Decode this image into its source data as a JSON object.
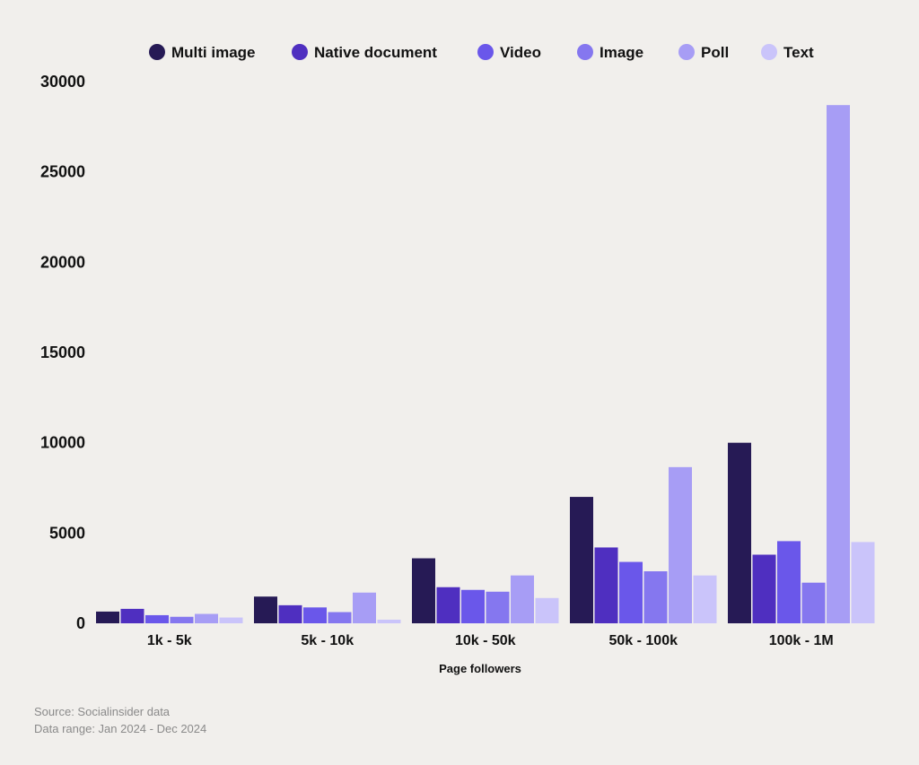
{
  "chart_data": {
    "type": "bar",
    "xlabel": "Page followers",
    "ylabel": "",
    "ylim": [
      0,
      30000
    ],
    "yticks": [
      0,
      5000,
      10000,
      15000,
      20000,
      25000,
      30000
    ],
    "legend_position": "top",
    "grid": false,
    "categories": [
      "1k - 5k",
      "5k - 10k",
      "10k - 50k",
      "50k - 100k",
      "100k - 1M"
    ],
    "series": [
      {
        "name": "Multi image",
        "color": "#261a55",
        "values": [
          650,
          1480,
          3600,
          7000,
          10000
        ]
      },
      {
        "name": "Native document",
        "color": "#4f2fc0",
        "values": [
          800,
          1000,
          2000,
          4200,
          3800
        ]
      },
      {
        "name": "Video",
        "color": "#6a57ea",
        "values": [
          450,
          880,
          1850,
          3400,
          4550
        ]
      },
      {
        "name": "Image",
        "color": "#8577ef",
        "values": [
          360,
          620,
          1750,
          2880,
          2250
        ]
      },
      {
        "name": "Poll",
        "color": "#a79df5",
        "values": [
          520,
          1700,
          2650,
          8650,
          28700
        ]
      },
      {
        "name": "Text",
        "color": "#cac4fa",
        "values": [
          320,
          200,
          1400,
          2650,
          4500
        ]
      }
    ]
  },
  "footer": {
    "source": "Source: Socialinsider data",
    "range": "Data range: Jan 2024 - Dec 2024"
  }
}
